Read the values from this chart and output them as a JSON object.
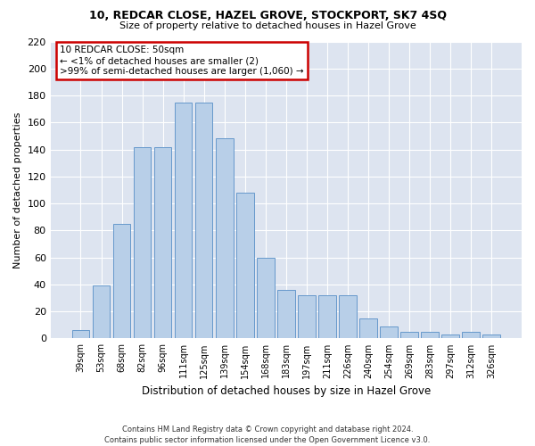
{
  "title1": "10, REDCAR CLOSE, HAZEL GROVE, STOCKPORT, SK7 4SQ",
  "title2": "Size of property relative to detached houses in Hazel Grove",
  "xlabel": "Distribution of detached houses by size in Hazel Grove",
  "ylabel": "Number of detached properties",
  "footnote": "Contains HM Land Registry data © Crown copyright and database right 2024.\nContains public sector information licensed under the Open Government Licence v3.0.",
  "annotation_title": "10 REDCAR CLOSE: 50sqm",
  "annotation_line1": "← <1% of detached houses are smaller (2)",
  "annotation_line2": ">99% of semi-detached houses are larger (1,060) →",
  "categories": [
    "39sqm",
    "53sqm",
    "68sqm",
    "82sqm",
    "96sqm",
    "111sqm",
    "125sqm",
    "139sqm",
    "154sqm",
    "168sqm",
    "183sqm",
    "197sqm",
    "211sqm",
    "226sqm",
    "240sqm",
    "254sqm",
    "269sqm",
    "283sqm",
    "297sqm",
    "312sqm",
    "326sqm"
  ],
  "values": [
    6,
    39,
    85,
    142,
    142,
    175,
    175,
    148,
    108,
    60,
    36,
    32,
    32,
    32,
    15,
    9,
    5,
    5,
    3,
    5,
    3
  ],
  "bar_color": "#b8cfe8",
  "bar_edge_color": "#6699cc",
  "background_color": "#dde4f0",
  "fig_background": "#ffffff",
  "annotation_box_color": "#ffffff",
  "annotation_box_edge": "#cc0000",
  "ylim": [
    0,
    220
  ],
  "yticks": [
    0,
    20,
    40,
    60,
    80,
    100,
    120,
    140,
    160,
    180,
    200,
    220
  ]
}
